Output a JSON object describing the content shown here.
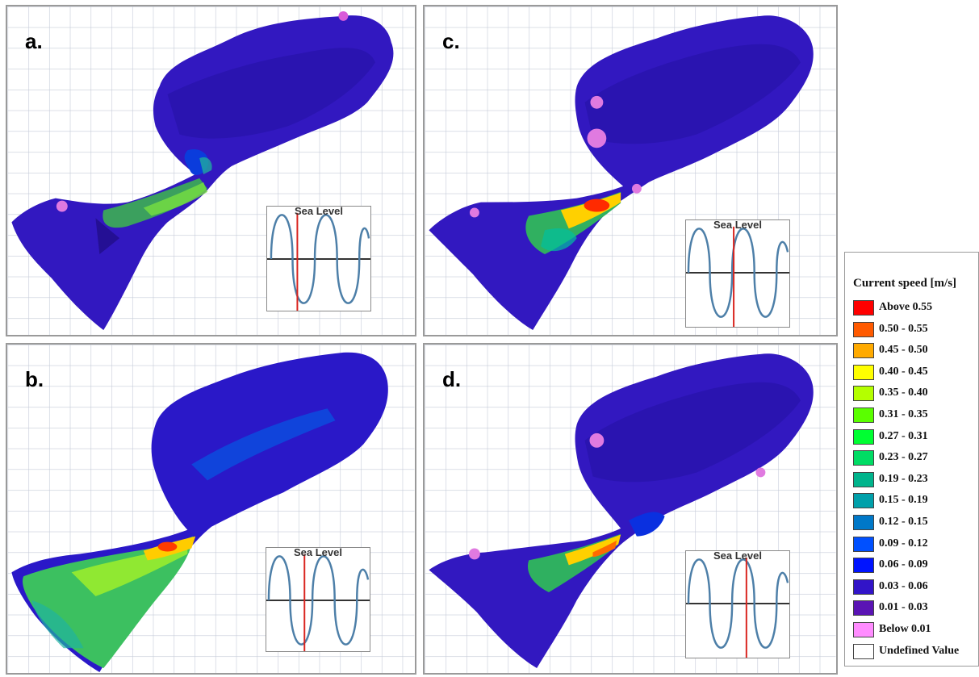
{
  "panels": [
    {
      "label": "a.",
      "inset_title": "Sea Level"
    },
    {
      "label": "b.",
      "inset_title": "Sea Level"
    },
    {
      "label": "c.",
      "inset_title": "Sea Level"
    },
    {
      "label": "d.",
      "inset_title": "Sea Level"
    }
  ],
  "legend": {
    "title": "Current speed [m/s]",
    "items": [
      {
        "label": "Above 0.55",
        "color": "#ff0000"
      },
      {
        "label": "0.50 - 0.55",
        "color": "#ff5a00"
      },
      {
        "label": "0.45 - 0.50",
        "color": "#ffaa00"
      },
      {
        "label": "0.40 - 0.45",
        "color": "#ffff00"
      },
      {
        "label": "0.35 - 0.40",
        "color": "#b4ff00"
      },
      {
        "label": "0.31 - 0.35",
        "color": "#5aff00"
      },
      {
        "label": "0.27 - 0.31",
        "color": "#00ff32"
      },
      {
        "label": "0.23 - 0.27",
        "color": "#00dc64"
      },
      {
        "label": "0.19 - 0.23",
        "color": "#00b48c"
      },
      {
        "label": "0.15 - 0.19",
        "color": "#00a0aa"
      },
      {
        "label": "0.12 - 0.15",
        "color": "#0078c8"
      },
      {
        "label": "0.09 - 0.12",
        "color": "#0050ff"
      },
      {
        "label": "0.06 - 0.09",
        "color": "#0014ff"
      },
      {
        "label": "0.03 - 0.06",
        "color": "#3214c8"
      },
      {
        "label": "0.01 - 0.03",
        "color": "#5a14b4"
      },
      {
        "label": "Below 0.01",
        "color": "#ff8cff"
      },
      {
        "label": "Undefined Value",
        "color": "#ffffff"
      }
    ]
  }
}
